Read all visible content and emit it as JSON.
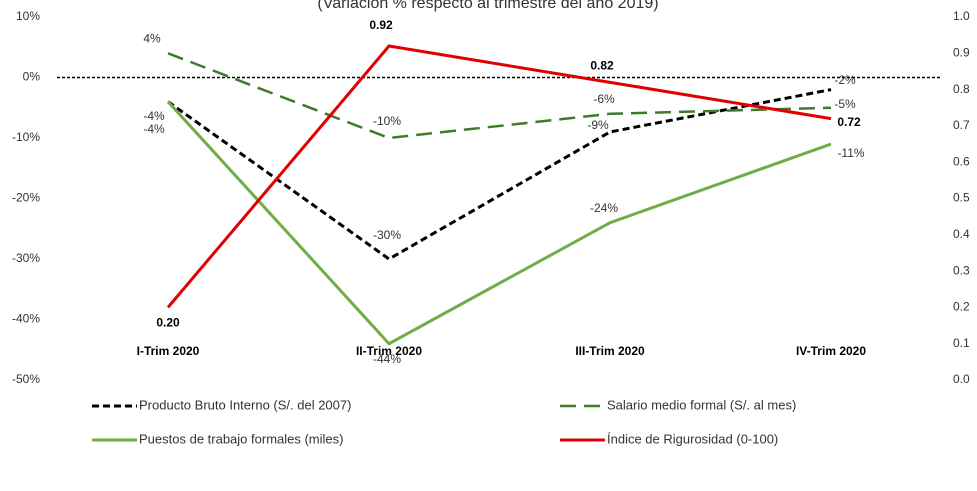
{
  "chart_data": {
    "type": "line",
    "title": "(Variación % respecto al trimestre del año 2019)",
    "categories": [
      "I-Trim 2020",
      "II-Trim 2020",
      "III-Trim 2020",
      "IV-Trim 2020"
    ],
    "ylim": [
      -50,
      10
    ],
    "yticks": [
      {
        "value": 10,
        "label": "10%"
      },
      {
        "value": 0,
        "label": "0%"
      },
      {
        "value": -10,
        "label": "-10%"
      },
      {
        "value": -20,
        "label": "-20%"
      },
      {
        "value": -30,
        "label": "-30%"
      },
      {
        "value": -40,
        "label": "-40%"
      },
      {
        "value": -50,
        "label": "-50%"
      }
    ],
    "y2lim": [
      0,
      1
    ],
    "y2ticks": [
      {
        "value": 1,
        "label": "1.0"
      },
      0.9,
      0.8,
      0.7,
      0.6,
      0.5,
      0.4,
      0.3,
      0.2,
      0.1,
      {
        "value": 0,
        "label": "0.0"
      }
    ],
    "zero_line": true,
    "series": [
      {
        "name": "Producto Bruto Interno (S/. del 2007)",
        "color": "#000000",
        "dash": "short",
        "values": [
          -4,
          -30,
          -9,
          -2
        ],
        "value_labels": [
          "-4%",
          "-30%",
          "-9%",
          "-2%"
        ]
      },
      {
        "name": "Salario medio formal (S/. al mes)",
        "color": "#3f7a2e",
        "dash": "long",
        "values": [
          4,
          -10,
          -6,
          -5
        ],
        "value_labels": [
          "4%",
          "-10%",
          "-6%",
          "-5%"
        ]
      },
      {
        "name": "Puestos de trabajo formales (miles)",
        "color": "#70ad47",
        "dash": "solid",
        "values": [
          -4,
          -44,
          -24,
          -11
        ],
        "value_labels": [
          "-4%",
          "-44%",
          "-24%",
          "-11%"
        ]
      },
      {
        "name": "Índice de Rigurosidad (0-100)",
        "color": "#e00000",
        "dash": "solid",
        "axis": "y2",
        "values": [
          0.2,
          0.92,
          0.82,
          0.72
        ],
        "value_labels": [
          "0.20",
          "0.92",
          "0.82",
          "0.72"
        ]
      }
    ]
  }
}
